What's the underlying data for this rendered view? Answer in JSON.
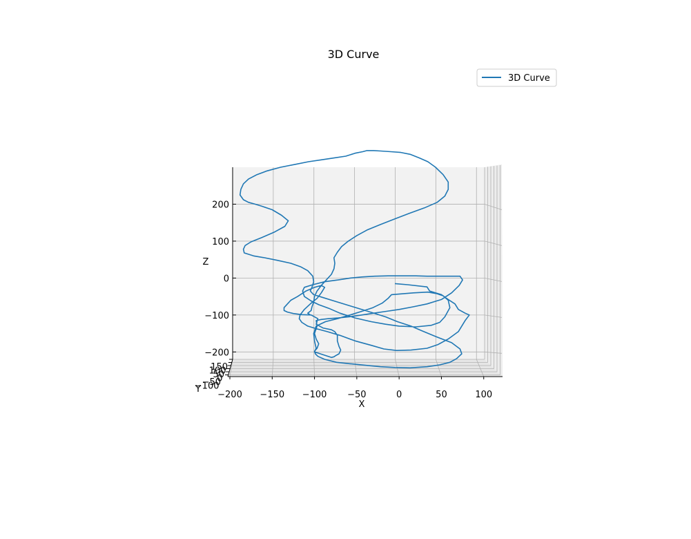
{
  "chart_data": {
    "type": "line",
    "projection": "3d",
    "title": "3D Curve",
    "xlabel": "X",
    "ylabel": "Y",
    "zlabel": "Z",
    "xlim": [
      -200,
      110
    ],
    "zlim": [
      -220,
      300
    ],
    "xticks": [
      "−200",
      "−150",
      "−100",
      "−50",
      "0",
      "50",
      "100"
    ],
    "xtick_values": [
      -200,
      -150,
      -100,
      -50,
      0,
      50,
      100
    ],
    "zticks": [
      "−200",
      "−100",
      "0",
      "100",
      "200"
    ],
    "ztick_values": [
      -200,
      -100,
      0,
      100,
      200
    ],
    "yticks": [
      "150",
      "100",
      "50",
      "0",
      "−50",
      "−100"
    ],
    "grid": true,
    "legend": {
      "position": "top-right",
      "entries": [
        "3D Curve"
      ]
    },
    "colors": {
      "series": "#1f77b4",
      "pane": "#f2f2f2",
      "grid": "#b0b0b0"
    },
    "series": [
      {
        "name": "3D Curve",
        "x": [
          -5,
          10,
          33,
          36,
          50,
          58,
          66,
          70,
          78,
          83,
          78,
          70,
          58,
          46,
          33,
          14,
          -3,
          -18,
          -33,
          -52,
          -70,
          -85,
          -98,
          -108,
          -115,
          -118,
          -117,
          -112,
          -105,
          -97,
          -92,
          -88,
          -92,
          -100,
          -110,
          -120,
          -128,
          -132,
          -136,
          -136,
          -132,
          -125,
          -115,
          -104,
          -96,
          -98,
          -90,
          -80,
          -76,
          -73,
          -73,
          -71,
          -69,
          -71,
          -75,
          -77,
          -80,
          -100,
          -98,
          -100,
          -101,
          -98,
          -87,
          -73,
          -58,
          -44,
          -31,
          -20,
          -13,
          -9,
          17,
          34,
          44,
          52,
          58,
          60,
          54,
          48,
          38,
          20,
          0,
          -16,
          -33,
          -52,
          -70,
          -83,
          -95,
          -104,
          -112,
          -114,
          -112,
          -102,
          -88,
          -72,
          -58,
          -44,
          -29,
          -13,
          3,
          20,
          33,
          42,
          52,
          62,
          72,
          75,
          71,
          62,
          50,
          33,
          16,
          0,
          -15,
          -30,
          -44,
          -59,
          -72,
          -84,
          -92,
          -98,
          -97,
          -100,
          -98,
          -95,
          -97,
          -100,
          -99,
          -96,
          -88,
          -74,
          -58,
          -40,
          -22,
          -5,
          13,
          33,
          48,
          60,
          68,
          74,
          72,
          62,
          43,
          27,
          14,
          -2,
          -16,
          -34,
          -57,
          -77,
          -91,
          -101,
          -103,
          -105,
          -103,
          -101,
          -102,
          -108,
          -116,
          -128,
          -144,
          -159,
          -172,
          -183,
          -184,
          -182,
          -175,
          -162,
          -147,
          -135,
          -131,
          -139,
          -150,
          -163,
          -170,
          -178,
          -184,
          -188,
          -187,
          -184,
          -178,
          -168,
          -156,
          -140,
          -122,
          -107,
          -92,
          -77,
          -63,
          -52,
          -43,
          -38,
          -30,
          -22,
          -10,
          2,
          13,
          24,
          34,
          43,
          52,
          58,
          58,
          54,
          45,
          30,
          12,
          -5,
          -22,
          -38,
          -50,
          -60,
          -68,
          -73,
          -77,
          -76,
          -77,
          -80,
          -86,
          -92,
          -97,
          -100,
          -101,
          -103,
          -104,
          -108,
          -105
        ],
        "z": [
          -15,
          -18,
          -24,
          -35,
          -45,
          -58,
          -70,
          -85,
          -95,
          -100,
          -115,
          -145,
          -165,
          -180,
          -190,
          -195,
          -196,
          -192,
          -182,
          -170,
          -155,
          -145,
          -137,
          -130,
          -120,
          -110,
          -100,
          -85,
          -70,
          -55,
          -40,
          -25,
          -20,
          -25,
          -35,
          -50,
          -60,
          -70,
          -80,
          -88,
          -92,
          -96,
          -99,
          -100,
          -110,
          -125,
          -135,
          -140,
          -145,
          -155,
          -170,
          -185,
          -195,
          -205,
          -210,
          -213,
          -215,
          -200,
          -190,
          -170,
          -150,
          -130,
          -118,
          -110,
          -100,
          -90,
          -80,
          -68,
          -55,
          -45,
          -40,
          -38,
          -42,
          -48,
          -60,
          -80,
          -105,
          -120,
          -128,
          -132,
          -130,
          -125,
          -118,
          -108,
          -95,
          -82,
          -72,
          -62,
          -50,
          -35,
          -25,
          -18,
          -10,
          -5,
          0,
          3,
          5,
          6,
          6,
          6,
          5,
          5,
          5,
          5,
          5,
          -5,
          -20,
          -40,
          -58,
          -70,
          -78,
          -85,
          -90,
          -95,
          -100,
          -105,
          -108,
          -110,
          -112,
          -115,
          -130,
          -150,
          -165,
          -178,
          -190,
          -198,
          -205,
          -212,
          -220,
          -228,
          -232,
          -236,
          -240,
          -242,
          -243,
          -240,
          -235,
          -228,
          -218,
          -205,
          -192,
          -175,
          -158,
          -143,
          -130,
          -118,
          -105,
          -92,
          -76,
          -62,
          -52,
          -45,
          -40,
          -35,
          -25,
          -10,
          5,
          20,
          30,
          40,
          48,
          55,
          60,
          68,
          78,
          88,
          98,
          110,
          125,
          140,
          155,
          170,
          185,
          195,
          200,
          205,
          212,
          225,
          240,
          255,
          268,
          280,
          290,
          300,
          308,
          315,
          320,
          325,
          330,
          338,
          342,
          345,
          345,
          344,
          342,
          340,
          335,
          325,
          315,
          300,
          280,
          260,
          240,
          222,
          205,
          190,
          175,
          160,
          145,
          130,
          115,
          100,
          85,
          70,
          55,
          40,
          25,
          10,
          -5,
          -20,
          -35,
          -50,
          -65,
          -78,
          -88,
          -95,
          -100
        ]
      }
    ]
  }
}
